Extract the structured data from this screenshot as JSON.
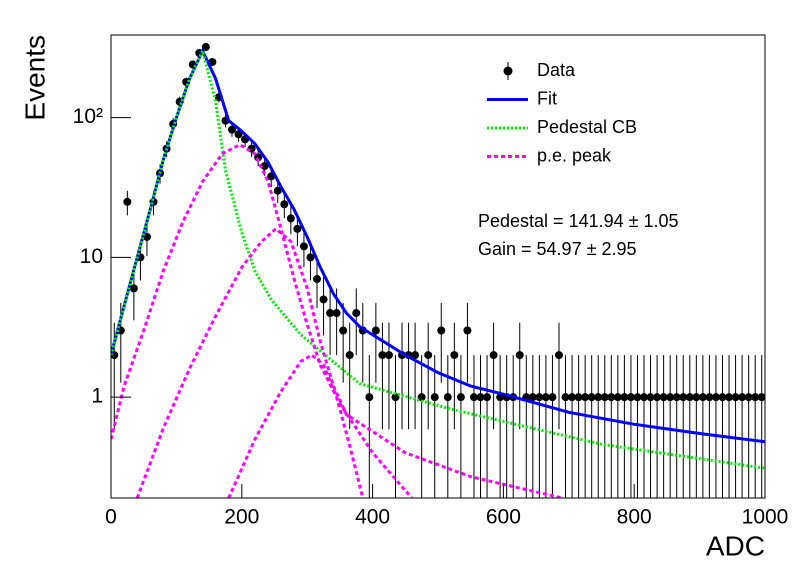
{
  "chart_data": {
    "type": "errorbar",
    "xlabel": "ADC",
    "ylabel": "Events",
    "log_y": true,
    "xlim": [
      0,
      1000
    ],
    "ylim": [
      0.19,
      390
    ],
    "xticks": [
      0,
      200,
      400,
      600,
      800,
      1000
    ],
    "yticks": [
      1,
      10,
      {
        "value": 100,
        "label": "10²"
      }
    ],
    "annotations": [
      "Pedestal = 141.94 ± 1.05",
      "Gain = 54.97 ± 2.95"
    ],
    "series": [
      {
        "name": "Data",
        "type": "errorbar",
        "color": "#000000",
        "x": [
          5,
          15,
          25,
          35,
          45,
          55,
          65,
          75,
          85,
          95,
          105,
          115,
          125,
          135,
          145,
          155,
          165,
          175,
          185,
          195,
          205,
          215,
          225,
          235,
          245,
          255,
          265,
          275,
          285,
          295,
          305,
          315,
          325,
          335,
          345,
          355,
          365,
          375,
          385,
          395,
          405,
          415,
          425,
          435,
          445,
          455,
          465,
          475,
          485,
          495,
          505,
          515,
          525,
          535,
          545,
          555,
          565,
          575,
          585,
          595,
          605,
          615,
          625,
          635,
          645,
          655,
          665,
          675,
          685,
          695,
          705,
          715,
          725,
          735,
          745,
          755,
          765,
          775,
          785,
          795,
          805,
          815,
          825,
          835,
          845,
          855,
          865,
          875,
          885,
          895,
          905,
          915,
          925,
          935,
          945,
          955,
          965,
          975,
          985,
          995
        ],
        "values": [
          2,
          3,
          25,
          6,
          10,
          14,
          25,
          40,
          60,
          90,
          130,
          180,
          240,
          290,
          320,
          250,
          140,
          95,
          82,
          76,
          70,
          60,
          52,
          45,
          38,
          30,
          24,
          19,
          16,
          12,
          10,
          7,
          5,
          4,
          4,
          3,
          2,
          4,
          3,
          1,
          3,
          2,
          2,
          1,
          2,
          2,
          2,
          1,
          2,
          1,
          3,
          1,
          2,
          1,
          3,
          1,
          1,
          1,
          2,
          1,
          1,
          1,
          2,
          1,
          1,
          1,
          1,
          1,
          2,
          1,
          1,
          1,
          1,
          1,
          1,
          1,
          1,
          1,
          1,
          1,
          1,
          1,
          1,
          1,
          1,
          1,
          1,
          1,
          1,
          1,
          1,
          1,
          1,
          1,
          1,
          1,
          1,
          1,
          1,
          1
        ],
        "errors": [
          1.41,
          1.73,
          5,
          2.45,
          3.16,
          3.74,
          5,
          6.32,
          7.75,
          9.49,
          11.4,
          13.4,
          15.5,
          17,
          17.9,
          15.8,
          11.8,
          9.75,
          9.06,
          8.72,
          8.37,
          7.75,
          7.21,
          6.71,
          6.16,
          5.48,
          4.9,
          4.36,
          4,
          3.46,
          3.16,
          2.65,
          2.24,
          2,
          2,
          1.73,
          1.41,
          2,
          1.73,
          1,
          1.73,
          1.41,
          1.41,
          1,
          1.41,
          1.41,
          1.41,
          1,
          1.41,
          1,
          1.73,
          1,
          1.41,
          1,
          1.73,
          1,
          1,
          1,
          1.41,
          1,
          1,
          1,
          1.41,
          1,
          1,
          1,
          1,
          1,
          1.41,
          1,
          1,
          1,
          1,
          1,
          1,
          1,
          1,
          1,
          1,
          1,
          1,
          1,
          1,
          1,
          1,
          1,
          1,
          1,
          1,
          1,
          1,
          1,
          1,
          1,
          1,
          1,
          1,
          1,
          1,
          1
        ]
      },
      {
        "name": "Fit",
        "type": "line",
        "color": "#0000ff",
        "dash": "solid",
        "x": [
          0,
          20,
          40,
          60,
          80,
          100,
          120,
          140,
          160,
          180,
          200,
          220,
          240,
          260,
          280,
          300,
          320,
          340,
          360,
          380,
          400,
          450,
          500,
          550,
          600,
          700,
          800,
          900,
          1000
        ],
        "values": [
          2,
          4.5,
          10,
          22,
          50,
          100,
          190,
          300,
          190,
          95,
          80,
          65,
          48,
          32,
          22,
          14,
          8.5,
          5.5,
          4,
          3.2,
          2.8,
          2,
          1.5,
          1.2,
          1.05,
          0.78,
          0.64,
          0.55,
          0.48
        ]
      },
      {
        "name": "Pedestal CB",
        "type": "line",
        "color": "#00ee00",
        "dash": "dotted",
        "x": [
          0,
          20,
          40,
          60,
          80,
          100,
          120,
          140,
          160,
          175,
          200,
          220,
          245,
          290,
          380,
          520,
          750,
          1000
        ],
        "values": [
          2,
          4.5,
          10,
          22,
          50,
          100,
          190,
          300,
          130,
          42,
          15,
          8,
          5,
          2.8,
          1.25,
          0.82,
          0.46,
          0.31
        ]
      },
      {
        "name": "p.e. peak",
        "type": "line",
        "color": "#ff00ff",
        "dash": "dashed",
        "x": [
          0,
          20,
          50,
          80,
          110,
          140,
          170,
          197,
          220,
          240,
          260,
          280,
          300,
          320,
          350,
          400,
          460,
          null,
          40,
          80,
          120,
          160,
          200,
          230,
          252,
          275,
          300,
          320,
          340,
          360,
          450,
          550,
          690,
          null,
          180,
          220,
          260,
          290,
          307,
          325,
          345,
          365,
          385
        ],
        "values": [
          0.5,
          1.2,
          3,
          8,
          18,
          35,
          55,
          64,
          55,
          35,
          16,
          7,
          3.3,
          1.7,
          0.9,
          0.4,
          0.19,
          null,
          0.19,
          0.6,
          1.6,
          3.8,
          8.5,
          13,
          16,
          13,
          6,
          2.5,
          1.2,
          0.75,
          0.4,
          0.27,
          0.19,
          null,
          0.19,
          0.5,
          1.1,
          1.8,
          2,
          1.7,
          1,
          0.45,
          0.19
        ]
      }
    ]
  }
}
